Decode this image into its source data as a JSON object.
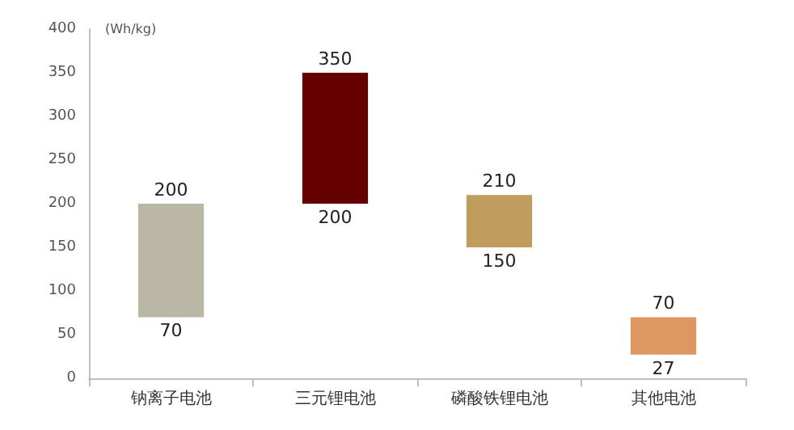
{
  "chart_data": {
    "type": "bar",
    "ylabel": "(Wh/kg)",
    "categories": [
      "钠离子电池",
      "三元锂电池",
      "磷酸铁锂电池",
      "其他电池"
    ],
    "values": [
      130,
      150,
      60,
      43
    ],
    "base": [
      70,
      200,
      150,
      27
    ],
    "colors": [
      "#b8b8a4",
      "#650000",
      "#be9d5d",
      "#df9762"
    ],
    "ylim": [
      0,
      400
    ],
    "yticks": [
      0,
      50,
      100,
      150,
      200,
      250,
      300,
      350,
      400
    ],
    "grid": false,
    "annotations": [
      {
        "text": "200",
        "x": "钠离子电池",
        "y": 200
      },
      {
        "text": "70",
        "x": "钠离子电池",
        "y": 70
      },
      {
        "text": "350",
        "x": "三元锂电池",
        "y": 350
      },
      {
        "text": "200",
        "x": "三元锂电池",
        "y": 200
      },
      {
        "text": "210",
        "x": "磷酸铁锂电池",
        "y": 210
      },
      {
        "text": "150",
        "x": "磷酸铁锂电池",
        "y": 150
      },
      {
        "text": "70",
        "x": "其他电池",
        "y": 70
      },
      {
        "text": "27",
        "x": "其他电池",
        "y": 27
      }
    ]
  }
}
